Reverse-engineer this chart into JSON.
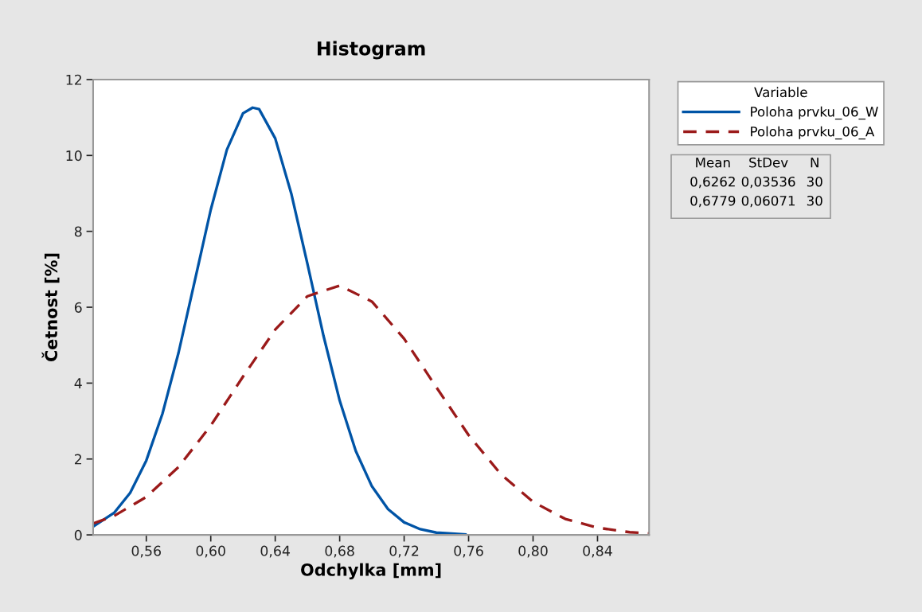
{
  "chart_data": {
    "type": "line",
    "title": "Histogram",
    "xlabel": "Odchylka [mm]",
    "ylabel": "Četnost [%]",
    "legend_title": "Variable",
    "series": [
      {
        "name": "Poloha prvku_06_W",
        "color": "#0054a6",
        "line_style": "solid",
        "x": [
          0.527,
          0.54,
          0.55,
          0.56,
          0.57,
          0.58,
          0.59,
          0.6,
          0.61,
          0.62,
          0.626,
          0.63,
          0.64,
          0.65,
          0.66,
          0.67,
          0.68,
          0.69,
          0.7,
          0.71,
          0.72,
          0.73,
          0.74,
          0.758
        ],
        "values": [
          0.22,
          0.58,
          1.11,
          1.96,
          3.19,
          4.8,
          6.68,
          8.57,
          10.15,
          11.11,
          11.26,
          11.22,
          10.45,
          8.99,
          7.14,
          5.24,
          3.54,
          2.21,
          1.28,
          0.68,
          0.33,
          0.15,
          0.06,
          0.01
        ]
      },
      {
        "name": "Poloha prvku_06_A",
        "color": "#9b1a1a",
        "line_style": "dashed",
        "x": [
          0.527,
          0.54,
          0.56,
          0.58,
          0.6,
          0.62,
          0.64,
          0.66,
          0.68,
          0.7,
          0.72,
          0.74,
          0.76,
          0.78,
          0.8,
          0.82,
          0.84,
          0.86,
          0.872
        ],
        "values": [
          0.3,
          0.5,
          1.0,
          1.79,
          2.88,
          4.17,
          5.41,
          6.29,
          6.57,
          6.15,
          5.17,
          3.89,
          2.63,
          1.6,
          0.87,
          0.42,
          0.19,
          0.07,
          0.04
        ]
      }
    ],
    "xlim": [
      0.527,
      0.872
    ],
    "xticks": [
      {
        "value": 0.56,
        "label": "0,56"
      },
      {
        "value": 0.6,
        "label": "0,60"
      },
      {
        "value": 0.64,
        "label": "0,64"
      },
      {
        "value": 0.68,
        "label": "0,68"
      },
      {
        "value": 0.72,
        "label": "0,72"
      },
      {
        "value": 0.76,
        "label": "0,76"
      },
      {
        "value": 0.8,
        "label": "0,80"
      },
      {
        "value": 0.84,
        "label": "0,84"
      }
    ],
    "ylim": [
      0,
      12
    ],
    "yticks": [
      0,
      2,
      4,
      6,
      8,
      10,
      12
    ],
    "grid": false,
    "legend": "top right",
    "marker": "none",
    "annotations": [
      "Mean",
      "StDev",
      "N",
      "0,6262",
      "0,03536",
      "30",
      "0,6779",
      "0,06071",
      "30"
    ]
  }
}
